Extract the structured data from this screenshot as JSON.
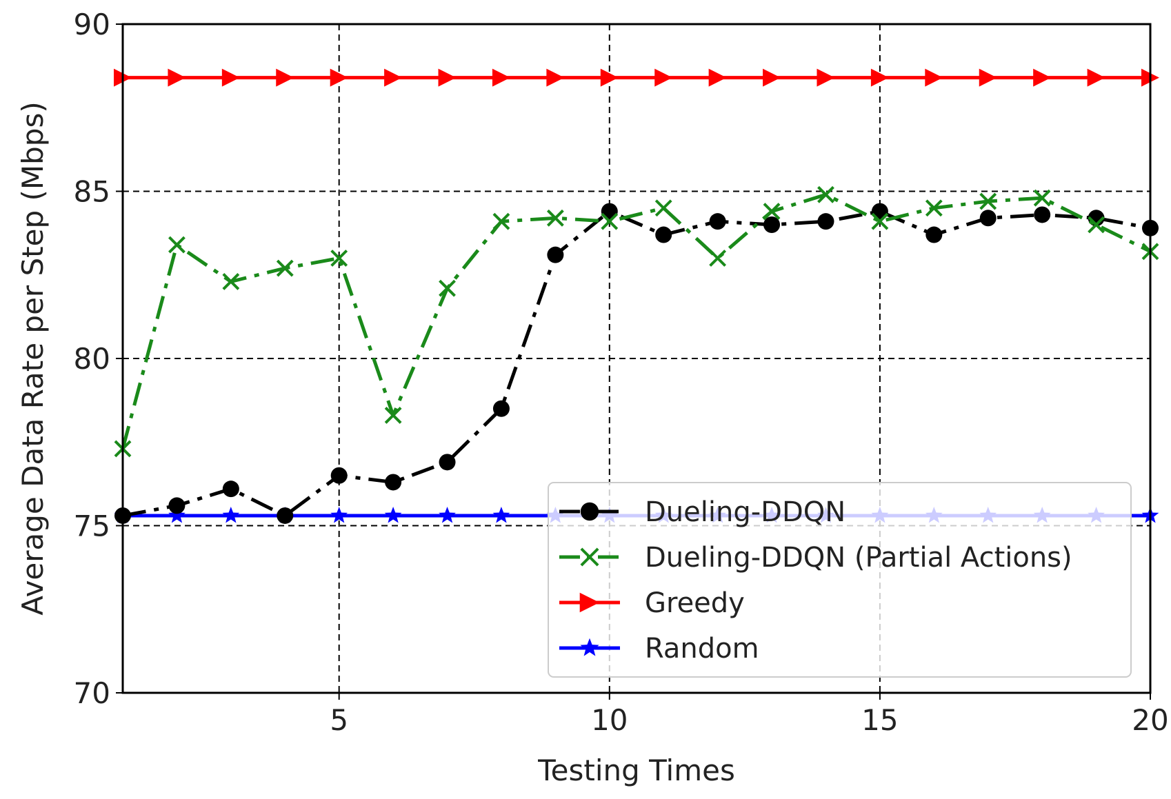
{
  "chart_data": {
    "type": "line",
    "title": "",
    "xlabel": "Testing Times",
    "ylabel": "Average Data Rate per Step (Mbps)",
    "xlim": [
      1,
      20
    ],
    "ylim": [
      70,
      90
    ],
    "xticks": [
      5,
      10,
      15,
      20
    ],
    "yticks": [
      70,
      75,
      80,
      85,
      90
    ],
    "grid": true,
    "legend_position": "lower-right",
    "x": [
      1,
      2,
      3,
      4,
      5,
      6,
      7,
      8,
      9,
      10,
      11,
      12,
      13,
      14,
      15,
      16,
      17,
      18,
      19,
      20
    ],
    "series": [
      {
        "name": "Dueling-DDQN",
        "color": "#000000",
        "marker": "circle",
        "linestyle": "dashdot",
        "values": [
          75.3,
          75.6,
          76.1,
          75.3,
          76.5,
          76.3,
          76.9,
          78.5,
          83.1,
          84.4,
          83.7,
          84.1,
          84.0,
          84.1,
          84.4,
          83.7,
          84.2,
          84.3,
          84.2,
          83.9
        ]
      },
      {
        "name": "Dueling-DDQN (Partial Actions)",
        "color": "#1a8a1a",
        "marker": "x",
        "linestyle": "dashdot",
        "values": [
          77.3,
          83.4,
          82.3,
          82.7,
          83.0,
          78.3,
          82.1,
          84.1,
          84.2,
          84.1,
          84.5,
          83.0,
          84.4,
          84.9,
          84.1,
          84.5,
          84.7,
          84.8,
          84.0,
          83.2
        ]
      },
      {
        "name": "Greedy",
        "color": "#ff0000",
        "marker": "triangle-right",
        "linestyle": "solid",
        "values": [
          88.4,
          88.4,
          88.4,
          88.4,
          88.4,
          88.4,
          88.4,
          88.4,
          88.4,
          88.4,
          88.4,
          88.4,
          88.4,
          88.4,
          88.4,
          88.4,
          88.4,
          88.4,
          88.4,
          88.4
        ]
      },
      {
        "name": "Random",
        "color": "#0000ff",
        "marker": "star",
        "linestyle": "solid",
        "values": [
          75.3,
          75.3,
          75.3,
          75.3,
          75.3,
          75.3,
          75.3,
          75.3,
          75.3,
          75.3,
          75.3,
          75.3,
          75.3,
          75.3,
          75.3,
          75.3,
          75.3,
          75.3,
          75.3,
          75.3
        ]
      }
    ]
  }
}
